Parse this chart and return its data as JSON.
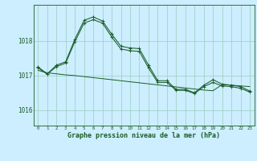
{
  "background_color": "#cceeff",
  "plot_bg_color": "#cceeff",
  "grid_color": "#99ccbb",
  "line_color": "#1a5c2a",
  "xlabel": "Graphe pression niveau de la mer (hPa)",
  "xlabel_fontsize": 6.0,
  "yticks": [
    1016,
    1017,
    1018
  ],
  "xlim": [
    -0.5,
    23.5
  ],
  "ylim": [
    1015.55,
    1019.05
  ],
  "xticks": [
    0,
    1,
    2,
    3,
    4,
    5,
    6,
    7,
    8,
    9,
    10,
    11,
    12,
    13,
    14,
    15,
    16,
    17,
    18,
    19,
    20,
    21,
    22,
    23
  ],
  "series1_x": [
    0,
    1,
    2,
    3,
    4,
    5,
    6,
    7,
    8,
    9,
    10,
    11,
    12,
    13,
    14,
    15,
    16,
    17,
    18,
    19,
    20,
    21,
    22,
    23
  ],
  "series1_y": [
    1017.25,
    1017.05,
    1017.3,
    1017.4,
    1018.05,
    1018.6,
    1018.7,
    1018.58,
    1018.2,
    1017.85,
    1017.8,
    1017.78,
    1017.3,
    1016.85,
    1016.85,
    1016.6,
    1016.6,
    1016.5,
    1016.72,
    1016.88,
    1016.75,
    1016.72,
    1016.68,
    1016.55
  ],
  "series2_x": [
    0,
    1,
    2,
    3,
    4,
    5,
    6,
    7,
    8,
    9,
    10,
    11,
    12,
    13,
    14,
    15,
    16,
    17,
    18,
    19,
    20,
    21,
    22,
    23
  ],
  "series2_y": [
    1017.15,
    1017.08,
    1017.05,
    1017.02,
    1017.0,
    1016.97,
    1016.94,
    1016.91,
    1016.88,
    1016.85,
    1016.82,
    1016.79,
    1016.76,
    1016.73,
    1016.7,
    1016.67,
    1016.64,
    1016.61,
    1016.58,
    1016.56,
    1016.74,
    1016.72,
    1016.7,
    1016.68
  ],
  "series3_x": [
    0,
    1,
    2,
    3,
    4,
    5,
    6,
    7,
    8,
    9,
    10,
    11,
    12,
    13,
    14,
    15,
    16,
    17,
    18,
    19,
    20,
    21,
    22,
    23
  ],
  "series3_y": [
    1017.22,
    1017.04,
    1017.26,
    1017.36,
    1017.98,
    1018.52,
    1018.62,
    1018.52,
    1018.12,
    1017.77,
    1017.72,
    1017.7,
    1017.22,
    1016.8,
    1016.8,
    1016.57,
    1016.57,
    1016.48,
    1016.68,
    1016.8,
    1016.7,
    1016.68,
    1016.63,
    1016.52
  ]
}
